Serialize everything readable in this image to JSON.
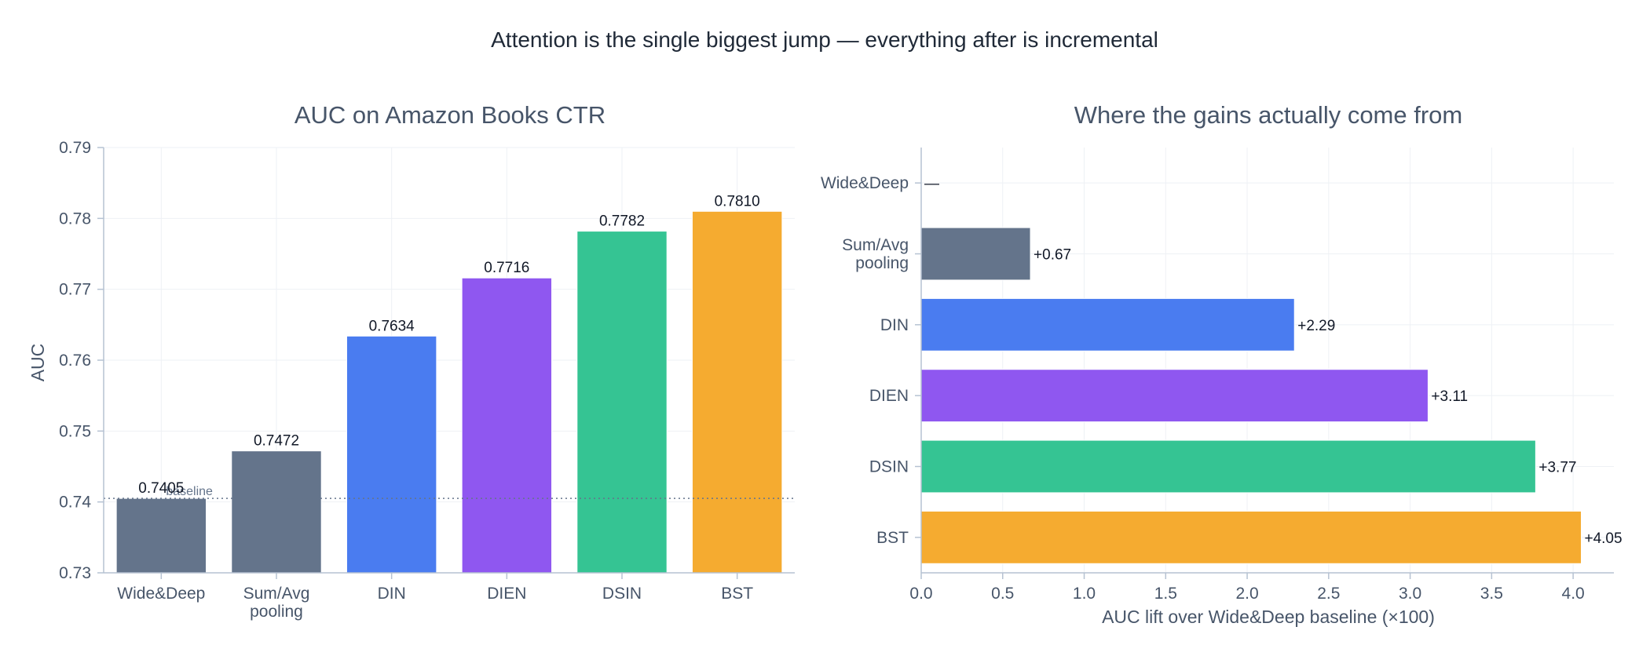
{
  "title": "Attention is the single biggest jump — everything after is incremental",
  "colors": {
    "Wide&Deep": "#64748b",
    "Sum/Avg pooling": "#64748b",
    "DIN": "#4a7cf0",
    "DIEN": "#8f57f0",
    "DSIN": "#35c493",
    "BST": "#f5ab30"
  },
  "chart_data": [
    {
      "type": "bar",
      "title": "AUC on Amazon Books CTR",
      "xlabel": "",
      "ylabel": "AUC",
      "categories": [
        "Wide&Deep",
        "Sum/Avg\npooling",
        "DIN",
        "DIEN",
        "DSIN",
        "BST"
      ],
      "values": [
        0.7405,
        0.7472,
        0.7634,
        0.7716,
        0.7782,
        0.781
      ],
      "value_labels": [
        "0.7405",
        "0.7472",
        "0.7634",
        "0.7716",
        "0.7782",
        "0.7810"
      ],
      "ylim": [
        0.73,
        0.79
      ],
      "yticks": [
        "0.73",
        "0.74",
        "0.75",
        "0.76",
        "0.77",
        "0.78",
        "0.79"
      ],
      "reference_line": {
        "value": 0.7405,
        "label": "baseline",
        "style": "dotted"
      },
      "grid": true
    },
    {
      "type": "bar",
      "orientation": "horizontal",
      "title": "Where the gains actually come from",
      "xlabel": "AUC lift over Wide&Deep baseline (×100)",
      "ylabel": "",
      "categories": [
        "Wide&Deep",
        "Sum/Avg\npooling",
        "DIN",
        "DIEN",
        "DSIN",
        "BST"
      ],
      "values": [
        0,
        0.67,
        2.29,
        3.11,
        3.77,
        4.05
      ],
      "value_labels": [
        "—",
        "+0.67",
        "+2.29",
        "+3.11",
        "+3.77",
        "+4.05"
      ],
      "xlim": [
        0,
        4.25
      ],
      "xticks": [
        "0.0",
        "0.5",
        "1.0",
        "1.5",
        "2.0",
        "2.5",
        "3.0",
        "3.5",
        "4.0"
      ],
      "grid": true
    }
  ]
}
